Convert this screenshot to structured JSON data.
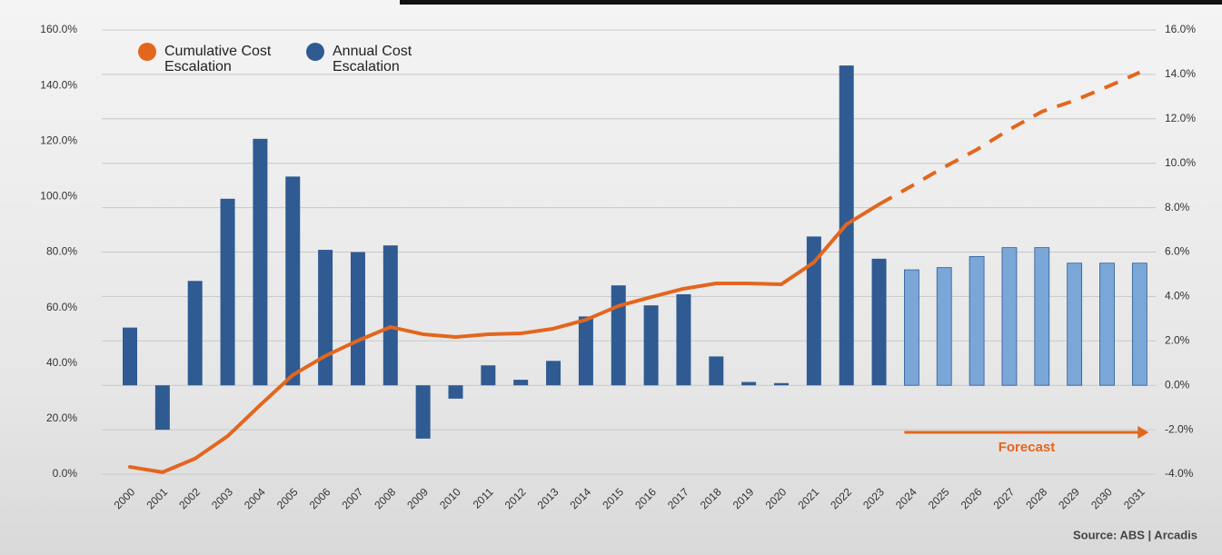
{
  "chart_data": {
    "type": "bar-line",
    "categories": [
      "2000",
      "2001",
      "2002",
      "2003",
      "2004",
      "2005",
      "2006",
      "2007",
      "2008",
      "2009",
      "2010",
      "2011",
      "2012",
      "2013",
      "2014",
      "2015",
      "2016",
      "2017",
      "2018",
      "2019",
      "2020",
      "2021",
      "2022",
      "2023",
      "2024",
      "2025",
      "2026",
      "2027",
      "2028",
      "2029",
      "2030",
      "2031"
    ],
    "series": [
      {
        "name": "Cumulative Cost Escalation",
        "type": "line",
        "color": "#e3661e",
        "values": [
          2.6,
          0.7,
          5.6,
          13.7,
          24.9,
          35.7,
          42.6,
          48.1,
          53.0,
          50.4,
          49.4,
          50.4,
          50.7,
          52.4,
          55.6,
          60.6,
          63.8,
          66.8,
          68.7,
          68.7,
          68.4,
          76.3,
          90.0,
          97.2,
          103.8,
          110.6,
          116.9,
          124.1,
          130.6,
          134.6,
          139.5,
          144.7
        ]
      },
      {
        "name": "Annual Cost Escalation",
        "type": "bar",
        "axis": "y2",
        "color": "#2f5b92",
        "forecast_color": "#7aa6d8",
        "values": [
          2.6,
          -2.0,
          4.7,
          8.4,
          11.1,
          9.4,
          6.1,
          6.0,
          6.3,
          -2.4,
          -0.6,
          0.9,
          0.25,
          1.1,
          3.1,
          4.5,
          3.6,
          4.1,
          1.3,
          0.15,
          0.1,
          6.7,
          14.4,
          5.7,
          5.2,
          5.3,
          5.8,
          6.2,
          6.2,
          5.5,
          5.5,
          5.5
        ]
      }
    ],
    "forecast": {
      "label": "Forecast",
      "start": "2024"
    },
    "ylim": [
      0,
      160
    ],
    "yticks": [
      {
        "value": 0,
        "label": "0.0%"
      },
      {
        "value": 20,
        "label": "20.0%"
      },
      {
        "value": 40,
        "label": "40.0%"
      },
      {
        "value": 60,
        "label": "60.0%"
      },
      {
        "value": 80,
        "label": "80.0%"
      },
      {
        "value": 100,
        "label": "100.0%"
      },
      {
        "value": 120,
        "label": "120.0%"
      },
      {
        "value": 140,
        "label": "140.0%"
      },
      {
        "value": 160,
        "label": "160.0%"
      }
    ],
    "y2lim": [
      -4,
      16
    ],
    "y2ticks": [
      {
        "value": -4,
        "label": "-4.0%"
      },
      {
        "value": -2,
        "label": "-2.0%"
      },
      {
        "value": 0,
        "label": "0.0%"
      },
      {
        "value": 2,
        "label": "2.0%"
      },
      {
        "value": 4,
        "label": "4.0%"
      },
      {
        "value": 6,
        "label": "6.0%"
      },
      {
        "value": 8,
        "label": "8.0%"
      },
      {
        "value": 10,
        "label": "10.0%"
      },
      {
        "value": 12,
        "label": "12.0%"
      },
      {
        "value": 14,
        "label": "14.0%"
      },
      {
        "value": 16,
        "label": "16.0%"
      }
    ],
    "grid": true,
    "source": "Source: ABS | Arcadis"
  }
}
